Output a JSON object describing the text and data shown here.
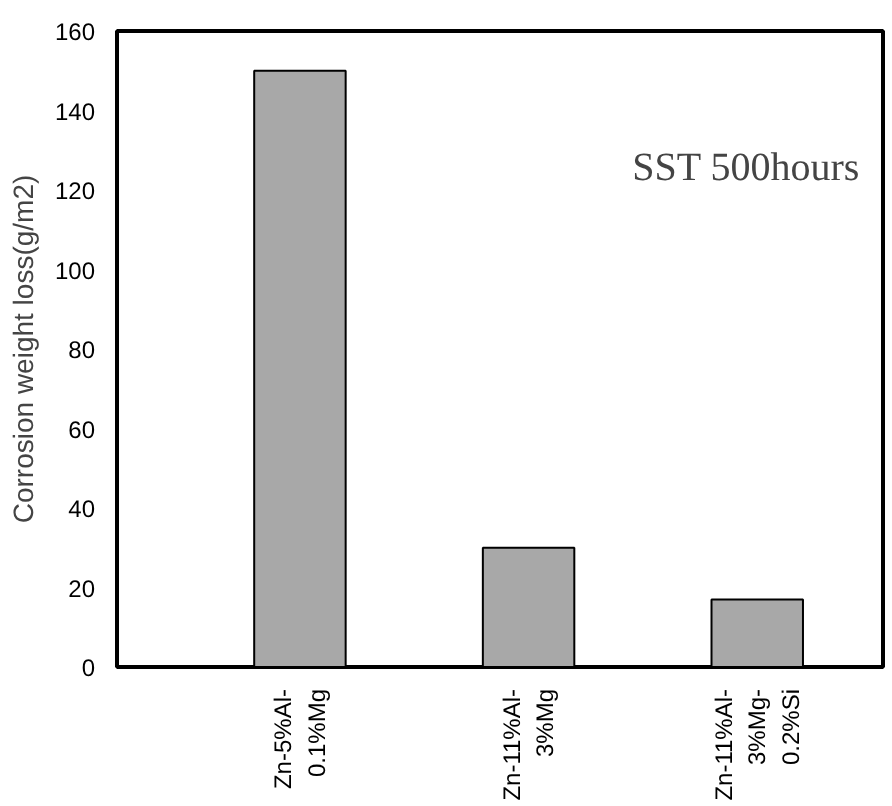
{
  "chart_data": {
    "type": "bar",
    "ylabel": "Corrosion weight loss(g/m2)",
    "categories": [
      "Zn-5%Al-\n0.1%Mg",
      "Zn-11%Al-\n3%Mg",
      "Zn-11%Al-\n3%Mg-\n0.2%Si"
    ],
    "values": [
      150,
      30,
      17
    ],
    "color": "#a8a8a8",
    "ylim": [
      0,
      160
    ],
    "yticks": [
      0,
      20,
      40,
      60,
      80,
      100,
      120,
      140,
      160
    ],
    "grid": false,
    "annotations": [
      "SST 500hours"
    ]
  }
}
